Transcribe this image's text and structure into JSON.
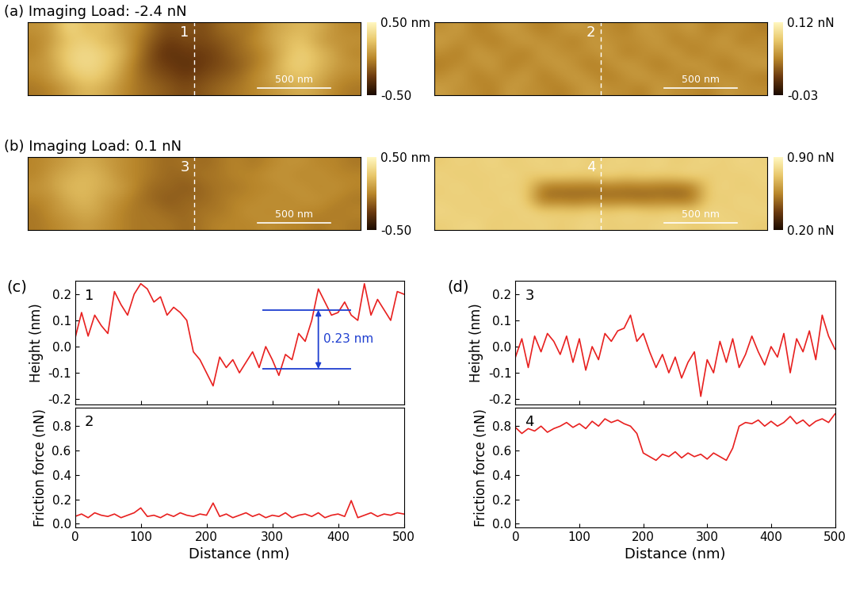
{
  "chart_data": [
    {
      "type": "heatmap",
      "title": "(a) Imaging Load: -2.4 nN",
      "annotation": "1",
      "scale_bar": "500 nm",
      "tick_labels": false,
      "cells": [
        [
          0.05,
          0.1,
          0.35,
          0.2,
          0.25,
          0.1,
          0.05,
          -0.1,
          -0.2,
          -0.15,
          -0.2,
          -0.1,
          -0.05,
          -0.05,
          0.1,
          0.15,
          0.2,
          0.15,
          0.05,
          0.0
        ],
        [
          0.0,
          0.1,
          0.25,
          0.3,
          0.2,
          0.15,
          0.0,
          -0.15,
          -0.25,
          -0.2,
          -0.2,
          -0.15,
          -0.1,
          0.0,
          0.1,
          0.2,
          0.25,
          0.1,
          0.05,
          0.05
        ],
        [
          0.0,
          0.15,
          0.3,
          0.35,
          0.3,
          0.2,
          0.0,
          -0.2,
          -0.3,
          -0.25,
          -0.25,
          -0.2,
          -0.1,
          -0.05,
          0.05,
          0.2,
          0.3,
          0.2,
          0.1,
          0.0
        ],
        [
          0.05,
          0.1,
          0.3,
          0.35,
          0.3,
          0.15,
          -0.05,
          -0.2,
          -0.25,
          -0.3,
          -0.25,
          -0.2,
          -0.15,
          -0.05,
          0.05,
          0.25,
          0.3,
          0.2,
          0.1,
          0.05
        ],
        [
          0.0,
          0.1,
          0.2,
          0.3,
          0.25,
          0.1,
          -0.05,
          -0.15,
          -0.2,
          -0.25,
          -0.2,
          -0.15,
          -0.1,
          0.0,
          0.1,
          0.2,
          0.25,
          0.15,
          0.05,
          0.0
        ],
        [
          -0.05,
          0.0,
          0.1,
          0.2,
          0.15,
          0.05,
          -0.05,
          -0.1,
          -0.15,
          -0.2,
          -0.15,
          -0.1,
          -0.05,
          0.0,
          0.05,
          0.1,
          0.15,
          0.1,
          0.0,
          -0.05
        ]
      ],
      "colorbar_range": [
        -0.5,
        0.5
      ],
      "colorbar_ticks": [
        {
          "value": -0.5,
          "label": "-0.50"
        },
        {
          "value": 0.5,
          "label": "0.50 nm"
        }
      ]
    },
    {
      "type": "heatmap",
      "annotation": "2",
      "scale_bar": "500 nm",
      "tick_labels": false,
      "cells": [
        [
          0.05,
          0.06,
          0.04,
          0.05,
          0.06,
          0.05,
          0.04,
          0.05,
          0.06,
          0.05,
          0.05,
          0.04,
          0.06,
          0.05,
          0.05,
          0.06,
          0.04,
          0.05,
          0.05,
          0.04
        ],
        [
          0.06,
          0.05,
          0.05,
          0.04,
          0.05,
          0.06,
          0.05,
          0.05,
          0.04,
          0.06,
          0.05,
          0.05,
          0.05,
          0.06,
          0.04,
          0.05,
          0.05,
          0.06,
          0.04,
          0.05
        ],
        [
          0.05,
          0.04,
          0.06,
          0.05,
          0.05,
          0.04,
          0.06,
          0.05,
          0.05,
          0.05,
          0.06,
          0.04,
          0.05,
          0.05,
          0.06,
          0.04,
          0.05,
          0.05,
          0.06,
          0.05
        ],
        [
          0.04,
          0.05,
          0.05,
          0.06,
          0.04,
          0.05,
          0.05,
          0.06,
          0.05,
          0.04,
          0.05,
          0.06,
          0.05,
          0.04,
          0.05,
          0.06,
          0.05,
          0.04,
          0.05,
          0.06
        ],
        [
          0.05,
          0.06,
          0.04,
          0.05,
          0.05,
          0.06,
          0.04,
          0.05,
          0.06,
          0.05,
          0.04,
          0.05,
          0.06,
          0.05,
          0.05,
          0.04,
          0.06,
          0.05,
          0.05,
          0.04
        ],
        [
          0.06,
          0.05,
          0.05,
          0.04,
          0.06,
          0.05,
          0.05,
          0.04,
          0.05,
          0.06,
          0.05,
          0.05,
          0.04,
          0.06,
          0.05,
          0.05,
          0.04,
          0.06,
          0.05,
          0.05
        ]
      ],
      "colorbar_range": [
        -0.03,
        0.12
      ],
      "colorbar_ticks": [
        {
          "value": -0.03,
          "label": "-0.03"
        },
        {
          "value": 0.12,
          "label": "0.12 nN"
        }
      ]
    },
    {
      "type": "heatmap",
      "title": "(b) Imaging Load: 0.1 nN",
      "annotation": "3",
      "scale_bar": "500 nm",
      "tick_labels": false,
      "cells": [
        [
          0.0,
          0.05,
          0.1,
          0.15,
          0.1,
          0.05,
          0.0,
          -0.05,
          -0.1,
          -0.05,
          -0.1,
          -0.05,
          0.0,
          -0.05,
          0.0,
          0.05,
          0.05,
          0.0,
          0.0,
          -0.05
        ],
        [
          0.0,
          0.1,
          0.15,
          0.2,
          0.15,
          0.05,
          0.0,
          -0.05,
          -0.1,
          -0.1,
          -0.05,
          -0.05,
          0.0,
          0.0,
          0.05,
          0.05,
          0.0,
          0.05,
          0.0,
          0.0
        ],
        [
          0.05,
          0.1,
          0.2,
          0.2,
          0.15,
          0.1,
          0.0,
          -0.1,
          -0.1,
          -0.15,
          -0.1,
          -0.05,
          -0.05,
          0.0,
          0.0,
          0.05,
          0.05,
          0.0,
          0.05,
          0.0
        ],
        [
          0.0,
          0.05,
          0.15,
          0.2,
          0.1,
          0.05,
          -0.05,
          -0.1,
          -0.15,
          -0.1,
          -0.1,
          -0.05,
          0.0,
          0.0,
          0.05,
          0.0,
          0.05,
          0.05,
          0.0,
          -0.05
        ],
        [
          -0.05,
          0.05,
          0.1,
          0.15,
          0.1,
          0.0,
          -0.05,
          -0.05,
          -0.1,
          -0.1,
          -0.05,
          -0.05,
          0.0,
          0.05,
          0.0,
          0.05,
          0.0,
          0.0,
          -0.05,
          0.0
        ],
        [
          -0.05,
          0.0,
          0.05,
          0.1,
          0.05,
          0.0,
          -0.05,
          -0.05,
          -0.05,
          -0.1,
          -0.05,
          0.0,
          0.0,
          0.0,
          0.05,
          0.0,
          0.0,
          -0.05,
          0.0,
          -0.05
        ]
      ],
      "colorbar_range": [
        -0.5,
        0.5
      ],
      "colorbar_ticks": [
        {
          "value": -0.5,
          "label": "-0.50"
        },
        {
          "value": 0.5,
          "label": "0.50 nm"
        }
      ]
    },
    {
      "type": "heatmap",
      "annotation": "4",
      "scale_bar": "500 nm",
      "tick_labels": false,
      "cells": [
        [
          0.74,
          0.77,
          0.75,
          0.78,
          0.74,
          0.76,
          0.77,
          0.75,
          0.78,
          0.74,
          0.76,
          0.77,
          0.75,
          0.78,
          0.74,
          0.76,
          0.77,
          0.75,
          0.78,
          0.76
        ],
        [
          0.77,
          0.74,
          0.76,
          0.75,
          0.78,
          0.74,
          0.76,
          0.77,
          0.75,
          0.76,
          0.78,
          0.74,
          0.77,
          0.75,
          0.76,
          0.78,
          0.74,
          0.76,
          0.75,
          0.77
        ],
        [
          0.75,
          0.78,
          0.74,
          0.77,
          0.75,
          0.76,
          0.52,
          0.5,
          0.51,
          0.49,
          0.52,
          0.5,
          0.51,
          0.5,
          0.49,
          0.52,
          0.75,
          0.77,
          0.74,
          0.76
        ],
        [
          0.76,
          0.75,
          0.77,
          0.74,
          0.78,
          0.75,
          0.5,
          0.51,
          0.49,
          0.52,
          0.5,
          0.51,
          0.49,
          0.52,
          0.5,
          0.51,
          0.76,
          0.74,
          0.78,
          0.75
        ],
        [
          0.78,
          0.76,
          0.75,
          0.77,
          0.74,
          0.78,
          0.75,
          0.76,
          0.74,
          0.77,
          0.75,
          0.78,
          0.76,
          0.74,
          0.77,
          0.75,
          0.78,
          0.76,
          0.75,
          0.77
        ],
        [
          0.75,
          0.77,
          0.78,
          0.74,
          0.76,
          0.75,
          0.77,
          0.74,
          0.76,
          0.78,
          0.74,
          0.76,
          0.75,
          0.77,
          0.78,
          0.74,
          0.75,
          0.77,
          0.76,
          0.74
        ]
      ],
      "colorbar_range": [
        0.2,
        0.9
      ],
      "colorbar_ticks": [
        {
          "value": 0.2,
          "label": "0.20 nN"
        },
        {
          "value": 0.9,
          "label": "0.90 nN"
        }
      ]
    },
    {
      "type": "line",
      "title": "(c)",
      "annotation": "1",
      "y_label": "Height (nm)",
      "color": "#e8201f",
      "tick_labels": "y",
      "x": [
        0,
        10,
        20,
        30,
        40,
        50,
        60,
        70,
        80,
        90,
        100,
        110,
        120,
        130,
        140,
        150,
        160,
        170,
        180,
        190,
        200,
        210,
        220,
        230,
        240,
        250,
        260,
        270,
        280,
        290,
        300,
        310,
        320,
        330,
        340,
        350,
        360,
        370,
        380,
        390,
        400,
        410,
        420,
        430,
        440,
        450,
        460,
        470,
        480,
        490,
        500
      ],
      "values": [
        0.03,
        0.13,
        0.04,
        0.12,
        0.08,
        0.05,
        0.21,
        0.16,
        0.12,
        0.2,
        0.24,
        0.22,
        0.17,
        0.19,
        0.12,
        0.15,
        0.13,
        0.1,
        -0.02,
        -0.05,
        -0.1,
        -0.15,
        -0.04,
        -0.08,
        -0.05,
        -0.1,
        -0.06,
        -0.02,
        -0.08,
        0.0,
        -0.05,
        -0.11,
        -0.03,
        -0.05,
        0.05,
        0.02,
        0.1,
        0.22,
        0.17,
        0.12,
        0.13,
        0.17,
        0.12,
        0.1,
        0.24,
        0.12,
        0.18,
        0.14,
        0.1,
        0.21,
        0.2
      ],
      "xlim": [
        0,
        500
      ],
      "xticks": [
        0,
        100,
        200,
        300,
        400,
        500
      ],
      "ylim": [
        -0.22,
        0.25
      ],
      "yticks": [
        -0.2,
        -0.1,
        {
          "value": 0,
          "label": "0.0"
        },
        0.1,
        0.2
      ],
      "measure": {
        "text": "0.23 nm",
        "color": "#1f3fd0",
        "y_top": 0.14,
        "y_bottom": -0.085,
        "x_start": 285,
        "x_end": 420,
        "arrow_x": 370
      }
    },
    {
      "type": "line",
      "annotation": "2",
      "y_label": "Friction force (nN)",
      "x_label": "Distance (nm)",
      "color": "#e8201f",
      "x": [
        0,
        10,
        20,
        30,
        40,
        50,
        60,
        70,
        80,
        90,
        100,
        110,
        120,
        130,
        140,
        150,
        160,
        170,
        180,
        190,
        200,
        210,
        220,
        230,
        240,
        250,
        260,
        270,
        280,
        290,
        300,
        310,
        320,
        330,
        340,
        350,
        360,
        370,
        380,
        390,
        400,
        410,
        420,
        430,
        440,
        450,
        460,
        470,
        480,
        490,
        500
      ],
      "values": [
        0.06,
        0.08,
        0.05,
        0.09,
        0.07,
        0.06,
        0.08,
        0.05,
        0.07,
        0.09,
        0.13,
        0.06,
        0.07,
        0.05,
        0.08,
        0.06,
        0.09,
        0.07,
        0.06,
        0.08,
        0.07,
        0.17,
        0.06,
        0.08,
        0.05,
        0.07,
        0.09,
        0.06,
        0.08,
        0.05,
        0.07,
        0.06,
        0.09,
        0.05,
        0.07,
        0.08,
        0.06,
        0.09,
        0.05,
        0.07,
        0.08,
        0.06,
        0.19,
        0.05,
        0.07,
        0.09,
        0.06,
        0.08,
        0.07,
        0.09,
        0.08
      ],
      "xlim": [
        0,
        500
      ],
      "xticks": [
        0,
        100,
        200,
        300,
        400,
        500
      ],
      "ylim": [
        -0.03,
        0.95
      ],
      "yticks": [
        {
          "value": 0,
          "label": "0.0"
        },
        0.2,
        0.4,
        0.6,
        0.8
      ]
    },
    {
      "type": "line",
      "title": "(d)",
      "annotation": "3",
      "y_label": "Height (nm)",
      "color": "#e8201f",
      "tick_labels": "y",
      "x": [
        0,
        10,
        20,
        30,
        40,
        50,
        60,
        70,
        80,
        90,
        100,
        110,
        120,
        130,
        140,
        150,
        160,
        170,
        180,
        190,
        200,
        210,
        220,
        230,
        240,
        250,
        260,
        270,
        280,
        290,
        300,
        310,
        320,
        330,
        340,
        350,
        360,
        370,
        380,
        390,
        400,
        410,
        420,
        430,
        440,
        450,
        460,
        470,
        480,
        490,
        500
      ],
      "values": [
        -0.04,
        0.03,
        -0.08,
        0.04,
        -0.02,
        0.05,
        0.02,
        -0.03,
        0.04,
        -0.06,
        0.03,
        -0.09,
        0.0,
        -0.05,
        0.05,
        0.02,
        0.06,
        0.07,
        0.12,
        0.02,
        0.05,
        -0.02,
        -0.08,
        -0.03,
        -0.1,
        -0.04,
        -0.12,
        -0.06,
        -0.02,
        -0.19,
        -0.05,
        -0.1,
        0.02,
        -0.06,
        0.03,
        -0.08,
        -0.03,
        0.04,
        -0.02,
        -0.07,
        0.0,
        -0.04,
        0.05,
        -0.1,
        0.03,
        -0.02,
        0.06,
        -0.05,
        0.12,
        0.04,
        -0.01
      ],
      "xlim": [
        0,
        500
      ],
      "xticks": [
        0,
        100,
        200,
        300,
        400,
        500
      ],
      "ylim": [
        -0.22,
        0.25
      ],
      "yticks": [
        -0.2,
        -0.1,
        {
          "value": 0,
          "label": "0.0"
        },
        0.1,
        0.2
      ]
    },
    {
      "type": "line",
      "annotation": "4",
      "y_label": "Friction force (nN)",
      "x_label": "Distance (nm)",
      "color": "#e8201f",
      "x": [
        0,
        10,
        20,
        30,
        40,
        50,
        60,
        70,
        80,
        90,
        100,
        110,
        120,
        130,
        140,
        150,
        160,
        170,
        180,
        190,
        200,
        210,
        220,
        230,
        240,
        250,
        260,
        270,
        280,
        290,
        300,
        310,
        320,
        330,
        340,
        350,
        360,
        370,
        380,
        390,
        400,
        410,
        420,
        430,
        440,
        450,
        460,
        470,
        480,
        490,
        500
      ],
      "values": [
        0.79,
        0.74,
        0.78,
        0.76,
        0.8,
        0.75,
        0.78,
        0.8,
        0.83,
        0.79,
        0.82,
        0.78,
        0.84,
        0.8,
        0.86,
        0.83,
        0.85,
        0.82,
        0.8,
        0.74,
        0.58,
        0.55,
        0.52,
        0.57,
        0.55,
        0.59,
        0.54,
        0.58,
        0.55,
        0.57,
        0.53,
        0.58,
        0.55,
        0.52,
        0.62,
        0.8,
        0.83,
        0.82,
        0.85,
        0.8,
        0.84,
        0.8,
        0.83,
        0.88,
        0.82,
        0.85,
        0.8,
        0.84,
        0.86,
        0.83,
        0.9
      ],
      "xlim": [
        0,
        500
      ],
      "xticks": [
        0,
        100,
        200,
        300,
        400,
        500
      ],
      "ylim": [
        -0.03,
        0.95
      ],
      "yticks": [
        {
          "value": 0,
          "label": "0.0"
        },
        0.2,
        0.4,
        0.6,
        0.8
      ]
    }
  ]
}
